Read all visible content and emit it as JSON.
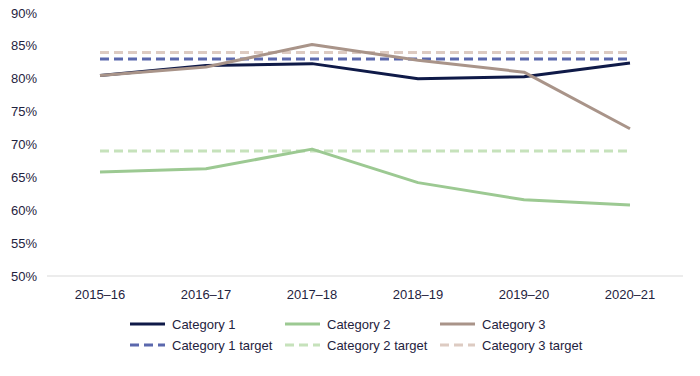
{
  "chart_data": {
    "type": "line",
    "categories": [
      "2015–16",
      "2016–17",
      "2017–18",
      "2018–19",
      "2019–20",
      "2020–21"
    ],
    "series": [
      {
        "name": "Category 1",
        "color": "#0f1a48",
        "line_style": "solid",
        "values": [
          80.5,
          82.0,
          82.3,
          80.0,
          80.3,
          82.4
        ]
      },
      {
        "name": "Category 2",
        "color": "#9cc992",
        "line_style": "solid",
        "values": [
          65.8,
          66.3,
          69.3,
          64.2,
          61.6,
          60.8
        ]
      },
      {
        "name": "Category 3",
        "color": "#a99489",
        "line_style": "solid",
        "values": [
          80.5,
          81.8,
          85.2,
          82.8,
          81.0,
          72.4
        ]
      },
      {
        "name": "Category 1 target",
        "color": "#5b68ad",
        "line_style": "dashed",
        "values": [
          83,
          83,
          83,
          83,
          83,
          83
        ]
      },
      {
        "name": "Category 2 target",
        "color": "#c6e2bb",
        "line_style": "dashed",
        "values": [
          69,
          69,
          69,
          69,
          69,
          69
        ]
      },
      {
        "name": "Category 3 target",
        "color": "#ddcbc2",
        "line_style": "dashed",
        "values": [
          84,
          84,
          84,
          84,
          84,
          84
        ]
      }
    ],
    "ylim": [
      50,
      90
    ],
    "yticks": [
      {
        "value": 50,
        "label": "50%"
      },
      {
        "value": 55,
        "label": "55%"
      },
      {
        "value": 60,
        "label": "60%"
      },
      {
        "value": 65,
        "label": "65%"
      },
      {
        "value": 70,
        "label": "70%"
      },
      {
        "value": 75,
        "label": "75%"
      },
      {
        "value": 80,
        "label": "80%"
      },
      {
        "value": 85,
        "label": "85%"
      },
      {
        "value": 90,
        "label": "90%"
      }
    ],
    "grid": false,
    "legend": "bottom"
  }
}
